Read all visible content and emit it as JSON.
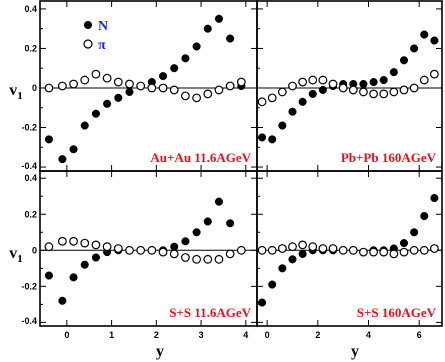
{
  "colors": {
    "panel_label": "#e8101a",
    "legend_label": "#1a2ad6",
    "axis": "#000000"
  },
  "ylabel": "v",
  "ylabel_sub": "1",
  "xlabel": "y",
  "legend": {
    "nucleon": "N",
    "pion": "π"
  },
  "chart_data": [
    {
      "type": "scatter",
      "title": "Au+Au 11.6AGeV",
      "xlim": [
        -0.6,
        4.25
      ],
      "ylim": [
        -0.42,
        0.44
      ],
      "xticks": [
        0,
        1,
        2,
        3,
        4
      ],
      "yticks": [
        -0.4,
        -0.2,
        0,
        0.2,
        0.4
      ],
      "series": [
        {
          "name": "N",
          "marker": "filled",
          "x": [
            -0.4,
            -0.1,
            0.15,
            0.4,
            0.65,
            0.9,
            1.15,
            1.4,
            1.65,
            1.9,
            2.15,
            2.4,
            2.65,
            2.9,
            3.15,
            3.4,
            3.65,
            3.9
          ],
          "y": [
            -0.26,
            -0.36,
            -0.31,
            -0.19,
            -0.13,
            -0.08,
            -0.05,
            -0.02,
            0.01,
            0.03,
            0.06,
            0.1,
            0.15,
            0.21,
            0.3,
            0.35,
            0.25,
            0.01
          ]
        },
        {
          "name": "π",
          "marker": "open",
          "x": [
            -0.4,
            -0.1,
            0.15,
            0.4,
            0.65,
            0.9,
            1.15,
            1.4,
            1.65,
            1.9,
            2.15,
            2.4,
            2.65,
            2.9,
            3.15,
            3.4,
            3.65,
            3.9
          ],
          "y": [
            0.0,
            0.01,
            0.02,
            0.04,
            0.07,
            0.05,
            0.03,
            0.02,
            0.01,
            0.0,
            0.0,
            -0.01,
            -0.04,
            -0.05,
            -0.03,
            -0.01,
            0.01,
            0.03
          ]
        }
      ]
    },
    {
      "type": "scatter",
      "title": "Pb+Pb 160AGeV",
      "xlim": [
        -0.4,
        6.9
      ],
      "ylim": [
        -0.42,
        0.44
      ],
      "xticks": [
        0,
        2,
        4,
        6
      ],
      "yticks": [
        -0.4,
        -0.2,
        0,
        0.2,
        0.4
      ],
      "series": [
        {
          "name": "N",
          "marker": "filled",
          "x": [
            -0.2,
            0.2,
            0.6,
            1.0,
            1.4,
            1.8,
            2.2,
            2.6,
            3.0,
            3.4,
            3.8,
            4.2,
            4.6,
            5.0,
            5.4,
            5.8,
            6.2,
            6.6
          ],
          "y": [
            -0.25,
            -0.26,
            -0.19,
            -0.12,
            -0.07,
            -0.03,
            -0.01,
            0.01,
            0.02,
            0.02,
            0.02,
            0.03,
            0.04,
            0.08,
            0.14,
            0.2,
            0.27,
            0.24
          ]
        },
        {
          "name": "π",
          "marker": "open",
          "x": [
            -0.2,
            0.2,
            0.6,
            1.0,
            1.4,
            1.8,
            2.2,
            2.6,
            3.0,
            3.4,
            3.8,
            4.2,
            4.6,
            5.0,
            5.4,
            5.8,
            6.2,
            6.6
          ],
          "y": [
            -0.07,
            -0.05,
            -0.02,
            0.01,
            0.03,
            0.04,
            0.04,
            0.02,
            0.0,
            -0.01,
            -0.02,
            -0.03,
            -0.03,
            -0.02,
            -0.01,
            0.0,
            0.04,
            0.07
          ]
        }
      ]
    },
    {
      "type": "scatter",
      "title": "S+S 11.6AGeV",
      "xlim": [
        -0.6,
        4.25
      ],
      "ylim": [
        -0.42,
        0.44
      ],
      "xticks": [
        0,
        1,
        2,
        3,
        4
      ],
      "yticks": [
        -0.4,
        -0.2,
        0,
        0.2,
        0.4
      ],
      "series": [
        {
          "name": "N",
          "marker": "filled",
          "x": [
            -0.4,
            -0.1,
            0.15,
            0.4,
            0.65,
            0.9,
            1.15,
            1.4,
            1.65,
            1.9,
            2.15,
            2.4,
            2.65,
            2.9,
            3.15,
            3.4,
            3.65,
            3.9
          ],
          "y": [
            -0.14,
            -0.28,
            -0.15,
            -0.08,
            -0.04,
            -0.01,
            0.0,
            0.0,
            0.0,
            0.0,
            0.0,
            0.02,
            0.05,
            0.1,
            0.16,
            0.27,
            0.15,
            0.0
          ]
        },
        {
          "name": "π",
          "marker": "open",
          "x": [
            -0.4,
            -0.1,
            0.15,
            0.4,
            0.65,
            0.9,
            1.15,
            1.4,
            1.65,
            1.9,
            2.15,
            2.4,
            2.65,
            2.9,
            3.15,
            3.4,
            3.65,
            3.9
          ],
          "y": [
            0.02,
            0.05,
            0.05,
            0.04,
            0.03,
            0.02,
            0.01,
            0.0,
            0.0,
            0.0,
            -0.01,
            -0.02,
            -0.04,
            -0.05,
            -0.05,
            -0.05,
            -0.02,
            0.0
          ]
        }
      ]
    },
    {
      "type": "scatter",
      "title": "S+S 160AGeV",
      "xlim": [
        -0.4,
        6.9
      ],
      "ylim": [
        -0.42,
        0.44
      ],
      "xticks": [
        0,
        2,
        4,
        6
      ],
      "yticks": [
        -0.4,
        -0.2,
        0,
        0.2,
        0.4
      ],
      "series": [
        {
          "name": "N",
          "marker": "filled",
          "x": [
            -0.2,
            0.2,
            0.6,
            1.0,
            1.4,
            1.8,
            2.2,
            2.6,
            3.0,
            3.4,
            3.8,
            4.2,
            4.6,
            5.0,
            5.4,
            5.8,
            6.2,
            6.6
          ],
          "y": [
            -0.29,
            -0.19,
            -0.1,
            -0.05,
            -0.02,
            0.0,
            0.0,
            0.0,
            0.0,
            0.0,
            -0.01,
            0.0,
            0.0,
            0.01,
            0.04,
            0.1,
            0.19,
            0.29
          ]
        },
        {
          "name": "π",
          "marker": "open",
          "x": [
            -0.2,
            0.2,
            0.6,
            1.0,
            1.4,
            1.8,
            2.2,
            2.6,
            3.0,
            3.4,
            3.8,
            4.2,
            4.6,
            5.0,
            5.4,
            5.8,
            6.2,
            6.6
          ],
          "y": [
            0.0,
            0.0,
            0.01,
            0.02,
            0.03,
            0.02,
            0.01,
            0.01,
            0.0,
            0.0,
            -0.01,
            -0.01,
            -0.01,
            -0.02,
            -0.01,
            0.0,
            0.0,
            0.01
          ]
        }
      ]
    }
  ]
}
